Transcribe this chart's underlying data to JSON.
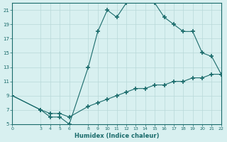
{
  "xlabel": "Humidex (Indice chaleur)",
  "line1_x": [
    0,
    3,
    4,
    5,
    6,
    8,
    9,
    10,
    11,
    12,
    13,
    14,
    15,
    16,
    17,
    18,
    19,
    20,
    21,
    22
  ],
  "line1_y": [
    9,
    7,
    6,
    6,
    5,
    13,
    18,
    21,
    20,
    22,
    22.5,
    22.5,
    22,
    20,
    19,
    18,
    18,
    15,
    14.5,
    12
  ],
  "line2_x": [
    0,
    3,
    4,
    5,
    6,
    8,
    9,
    10,
    11,
    12,
    13,
    14,
    15,
    16,
    17,
    18,
    19,
    20,
    21,
    22
  ],
  "line2_y": [
    9,
    7,
    6.5,
    6.5,
    6,
    7.5,
    8,
    8.5,
    9,
    9.5,
    10,
    10,
    10.5,
    10.5,
    11,
    11,
    11.5,
    11.5,
    12,
    12
  ],
  "line_color": "#1a6b6b",
  "bg_color": "#d8f0f0",
  "grid_color": "#b8d8d8",
  "xlim": [
    0,
    22
  ],
  "ylim": [
    5,
    22
  ],
  "xticks": [
    0,
    3,
    4,
    5,
    6,
    8,
    9,
    10,
    11,
    12,
    13,
    14,
    15,
    16,
    17,
    18,
    19,
    20,
    21,
    22
  ],
  "yticks": [
    5,
    7,
    9,
    11,
    13,
    15,
    17,
    19,
    21
  ],
  "marker": "+",
  "marker_size": 4,
  "linewidth": 0.8
}
